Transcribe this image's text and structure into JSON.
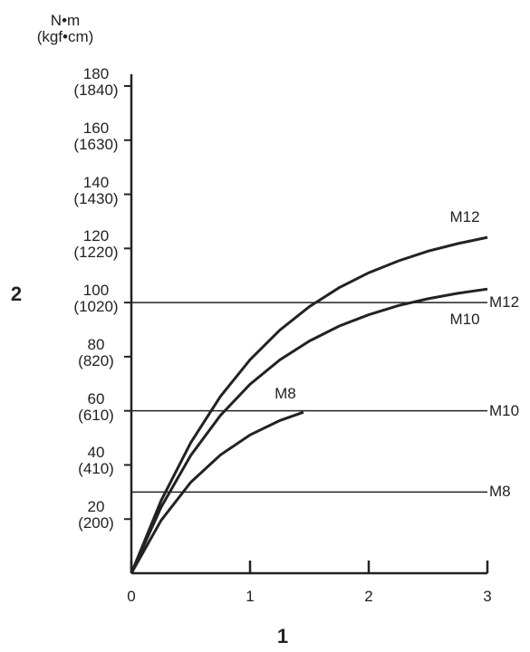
{
  "chart_data": {
    "type": "line",
    "y_unit": "N•m\n(kgf•cm)",
    "xlabel": "1",
    "ylabel": "2",
    "xlim": [
      0,
      3
    ],
    "ylim": [
      0,
      180
    ],
    "xticks": [
      0,
      1,
      2,
      3
    ],
    "yticks": [
      {
        "value": 20,
        "label": "20\n(200)"
      },
      {
        "value": 40,
        "label": "40\n(410)"
      },
      {
        "value": 60,
        "label": "60\n(610)"
      },
      {
        "value": 80,
        "label": "80\n(820)"
      },
      {
        "value": 100,
        "label": "100\n(1020)"
      },
      {
        "value": 120,
        "label": "120\n(1220)"
      },
      {
        "value": 140,
        "label": "140\n(1430)"
      },
      {
        "value": 160,
        "label": "160\n(1630)"
      },
      {
        "value": 180,
        "label": "180\n(1840)"
      }
    ],
    "color": "#222222",
    "series": [
      {
        "name": "M12",
        "color": "#222222",
        "x": [
          0,
          0.25,
          0.5,
          0.75,
          1,
          1.25,
          1.5,
          1.75,
          2,
          2.25,
          2.5,
          2.75,
          3
        ],
        "values": [
          0,
          26.8,
          48.2,
          65.3,
          78.9,
          89.8,
          98.5,
          105.5,
          111.0,
          115.4,
          119.0,
          121.8,
          124.1
        ]
      },
      {
        "name": "M10",
        "color": "#222222",
        "x": [
          0,
          0.25,
          0.5,
          0.75,
          1,
          1.25,
          1.5,
          1.75,
          2,
          2.25,
          2.5,
          2.75,
          3
        ],
        "values": [
          0,
          24.4,
          43.5,
          58.3,
          69.8,
          78.8,
          85.8,
          91.3,
          95.5,
          98.9,
          101.4,
          103.4,
          105.0
        ]
      },
      {
        "name": "M8",
        "color": "#222222",
        "x": [
          0,
          0.25,
          0.5,
          0.75,
          1,
          1.25,
          1.45
        ],
        "values": [
          0,
          19.5,
          33.6,
          43.7,
          51.1,
          56.4,
          59.5
        ]
      }
    ],
    "reference_lines": [
      {
        "name": "M12",
        "value": 100
      },
      {
        "name": "M10",
        "value": 60
      },
      {
        "name": "M8",
        "value": 30
      }
    ]
  }
}
